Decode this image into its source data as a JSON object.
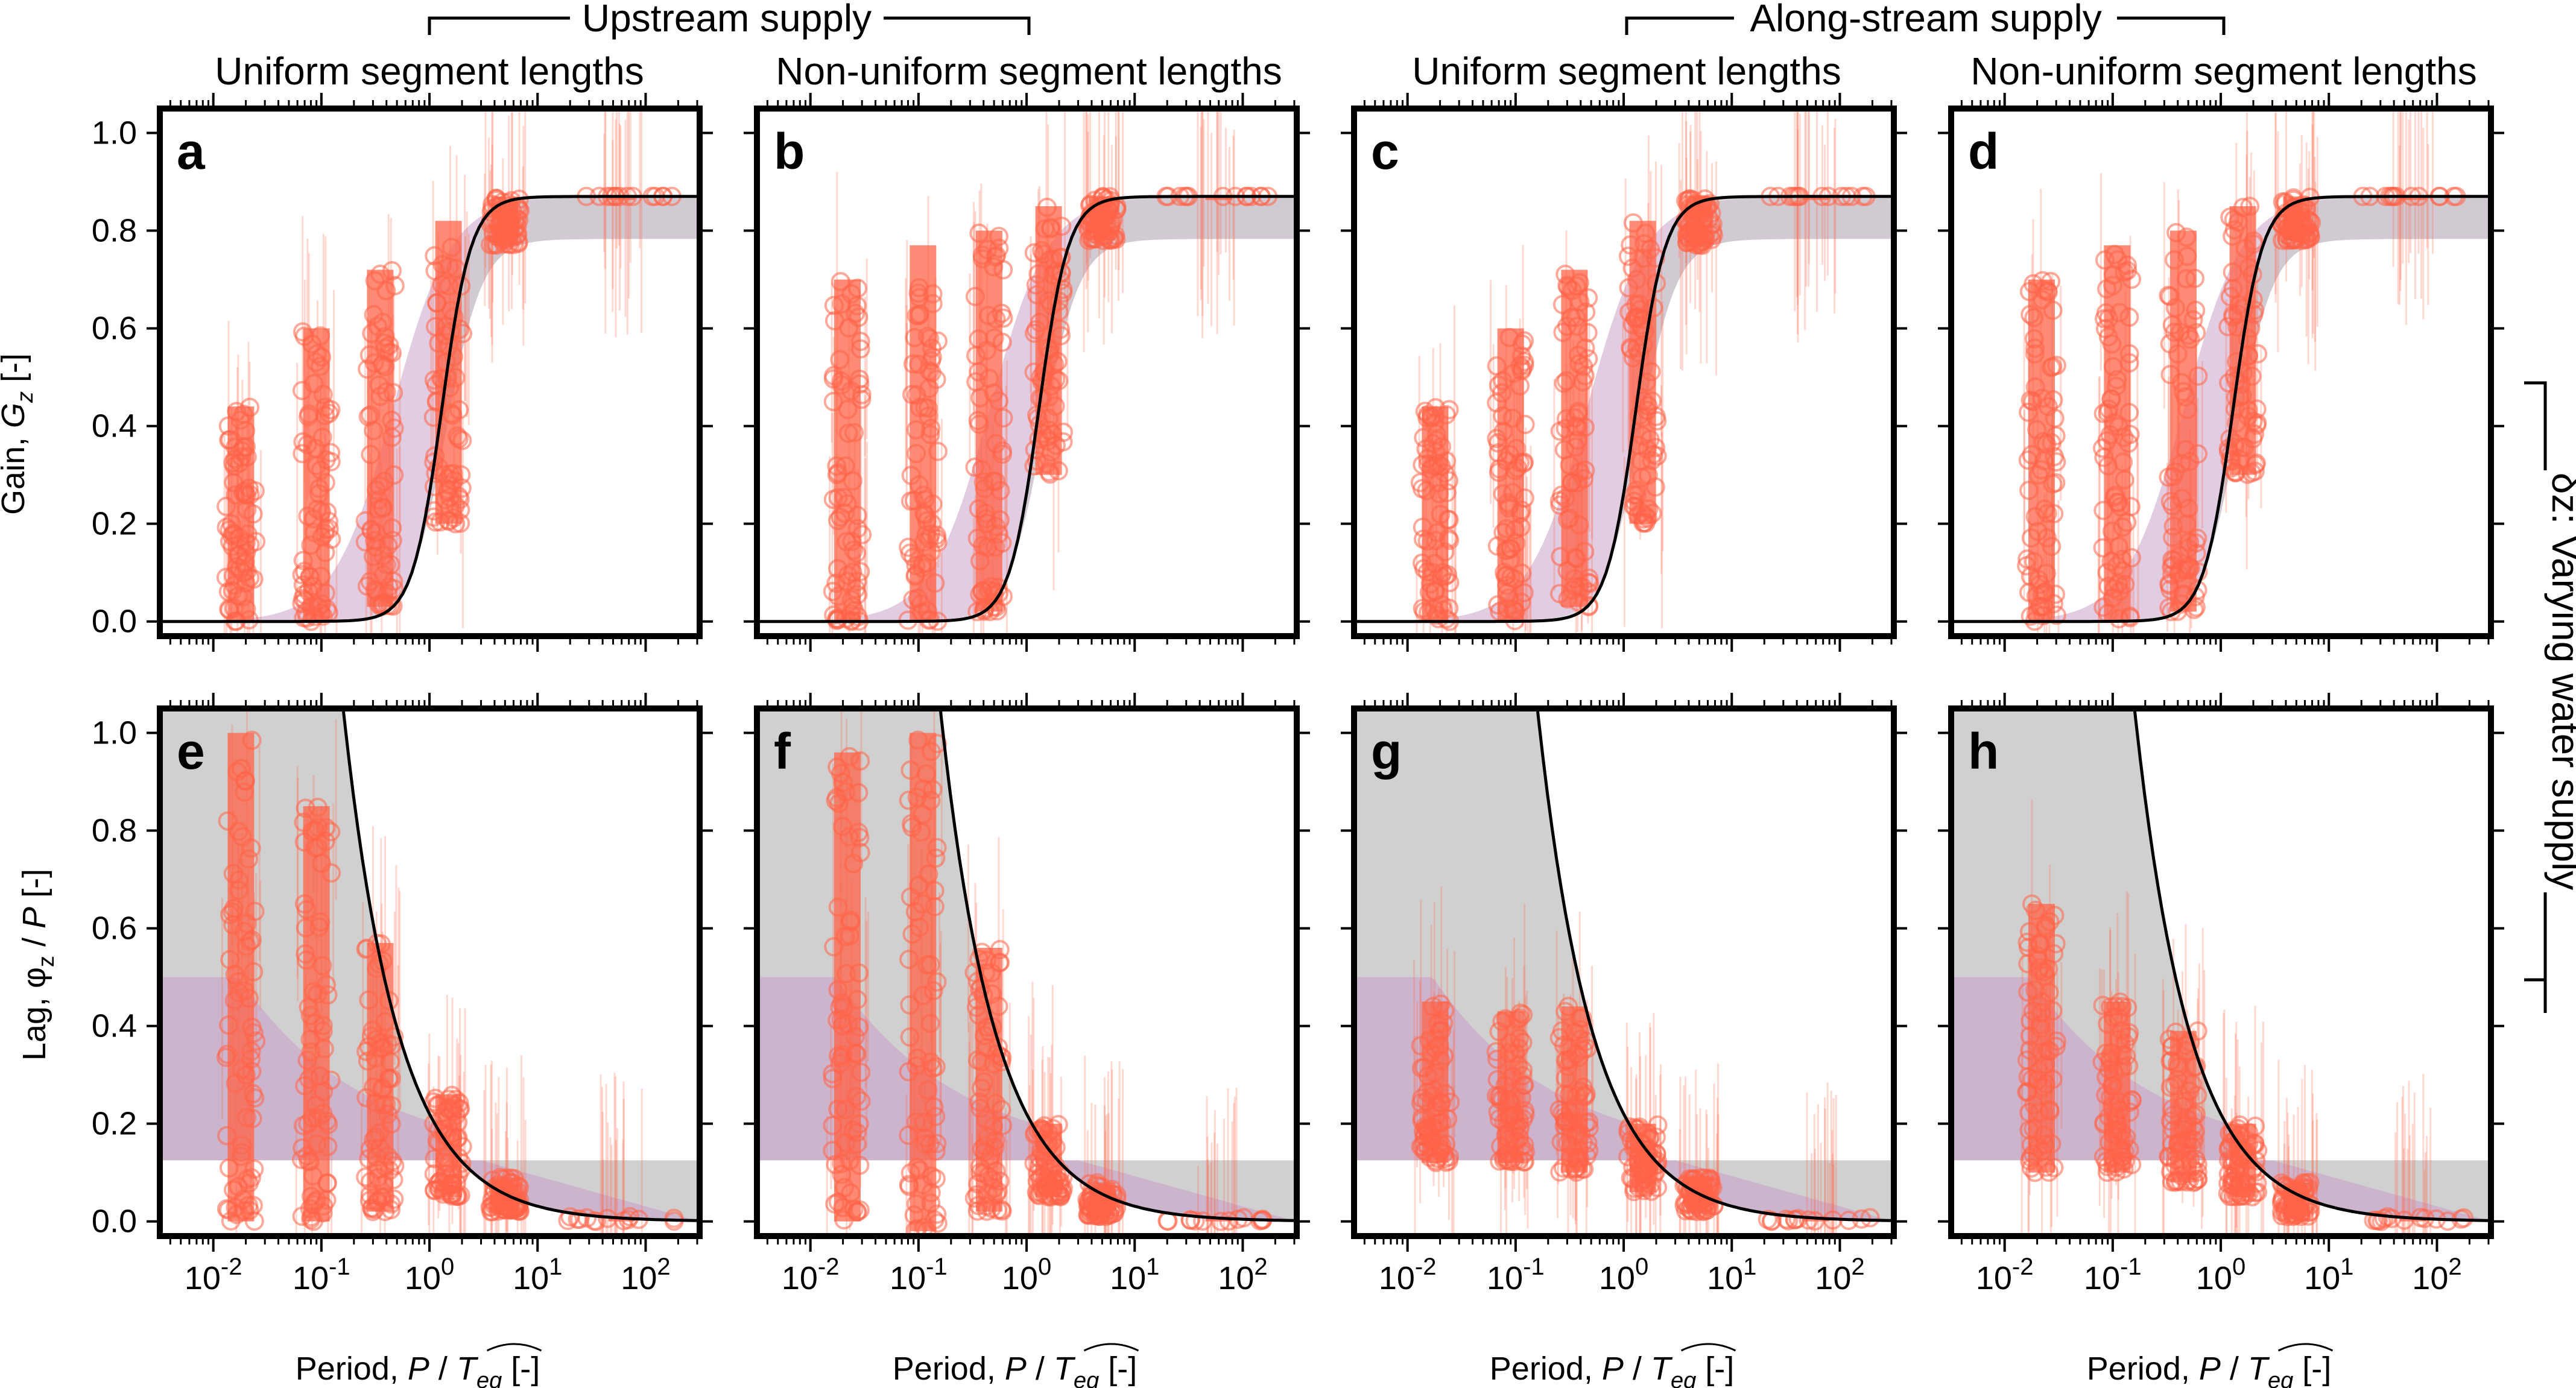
{
  "group_titles": [
    "Upstream supply",
    "Along-stream supply"
  ],
  "column_titles": [
    "Uniform segment lengths",
    "Non-uniform segment lengths",
    "Uniform segment lengths",
    "Non-uniform segment lengths"
  ],
  "side_title": "δz: Varying water supply",
  "panel_letters": [
    "a",
    "b",
    "c",
    "d",
    "e",
    "f",
    "g",
    "h"
  ],
  "row_axis_titles": {
    "gain": {
      "prefix": "Gain, ",
      "var": "G",
      "sub": "z",
      "suffix": " [-]"
    },
    "lag": {
      "prefix": "Lag, φ",
      "sub": "z",
      "mid": " / ",
      "var": "P",
      "suffix": " [-]"
    }
  },
  "x_axis_title": {
    "prefix": "Period, ",
    "var": "P",
    "mid": " / ",
    "denom": "T",
    "denom_sub": "eq",
    "suffix": " [-]"
  },
  "colors": {
    "points": "#ff6347",
    "envelope": "#c9a2c9",
    "grey_band": "#c8c8c8",
    "curve": "#000000"
  },
  "chart_data": [
    {
      "panel": "a",
      "type": "scatter",
      "xlabel": "Period, P / T_eq [-]",
      "ylabel": "Gain, G_z [-]",
      "xscale": "log",
      "xlim": [
        0.0032,
        316
      ],
      "ylim": [
        -0.03,
        1.05
      ],
      "xticks": [
        "10^-2",
        "10^-1",
        "10^0",
        "10^1",
        "10^2"
      ],
      "yticks": [
        "0.0",
        "0.2",
        "0.4",
        "0.6",
        "0.8",
        "1.0"
      ],
      "series": [
        {
          "kind": "scatter",
          "values": [
            {
              "x": 0.018,
              "y_low": 0.0,
              "y_high": 0.44
            },
            {
              "x": 0.09,
              "y_low": 0.0,
              "y_high": 0.6
            },
            {
              "x": 0.35,
              "y_low": 0.03,
              "y_high": 0.72
            },
            {
              "x": 1.5,
              "y_low": 0.2,
              "y_high": 0.82
            },
            {
              "x": 5,
              "y_low": 0.77,
              "y_high": 0.87
            },
            {
              "x": 60,
              "y_low": 0.87,
              "y_high": 0.87
            }
          ]
        },
        {
          "kind": "curve",
          "y_max": 0.87,
          "x_mid": 1.3
        }
      ]
    },
    {
      "panel": "b",
      "type": "scatter",
      "xlabel": "Period, P / T_eq [-]",
      "ylabel": "Gain, G_z [-]",
      "xscale": "log",
      "xlim": [
        0.0032,
        316
      ],
      "ylim": [
        -0.03,
        1.05
      ],
      "xticks": [
        "10^-2",
        "10^-1",
        "10^0",
        "10^1",
        "10^2"
      ],
      "yticks": [
        "0.0",
        "0.2",
        "0.4",
        "0.6",
        "0.8",
        "1.0"
      ],
      "series": [
        {
          "kind": "scatter",
          "values": [
            {
              "x": 0.022,
              "y_low": 0.0,
              "y_high": 0.7
            },
            {
              "x": 0.11,
              "y_low": 0.0,
              "y_high": 0.77
            },
            {
              "x": 0.45,
              "y_low": 0.02,
              "y_high": 0.8
            },
            {
              "x": 1.6,
              "y_low": 0.3,
              "y_high": 0.85
            },
            {
              "x": 5,
              "y_low": 0.78,
              "y_high": 0.87
            },
            {
              "x": 60,
              "y_low": 0.87,
              "y_high": 0.87
            }
          ]
        },
        {
          "kind": "curve",
          "y_max": 0.87,
          "x_mid": 1.3
        }
      ]
    },
    {
      "panel": "c",
      "type": "scatter",
      "xlabel": "Period, P / T_eq [-]",
      "ylabel": "Gain, G_z [-]",
      "xscale": "log",
      "xlim": [
        0.0032,
        316
      ],
      "ylim": [
        -0.03,
        1.05
      ],
      "xticks": [
        "10^-2",
        "10^-1",
        "10^0",
        "10^1",
        "10^2"
      ],
      "yticks": [
        "0.0",
        "0.2",
        "0.4",
        "0.6",
        "0.8",
        "1.0"
      ],
      "series": [
        {
          "kind": "scatter",
          "values": [
            {
              "x": 0.018,
              "y_low": 0.0,
              "y_high": 0.44
            },
            {
              "x": 0.09,
              "y_low": 0.0,
              "y_high": 0.6
            },
            {
              "x": 0.35,
              "y_low": 0.03,
              "y_high": 0.72
            },
            {
              "x": 1.5,
              "y_low": 0.2,
              "y_high": 0.82
            },
            {
              "x": 5,
              "y_low": 0.77,
              "y_high": 0.87
            },
            {
              "x": 60,
              "y_low": 0.87,
              "y_high": 0.87
            }
          ]
        },
        {
          "kind": "curve",
          "y_max": 0.87,
          "x_mid": 1.3
        }
      ]
    },
    {
      "panel": "d",
      "type": "scatter",
      "xlabel": "Period, P / T_eq [-]",
      "ylabel": "Gain, G_z [-]",
      "xscale": "log",
      "xlim": [
        0.0032,
        316
      ],
      "ylim": [
        -0.03,
        1.05
      ],
      "xticks": [
        "10^-2",
        "10^-1",
        "10^0",
        "10^1",
        "10^2"
      ],
      "yticks": [
        "0.0",
        "0.2",
        "0.4",
        "0.6",
        "0.8",
        "1.0"
      ],
      "series": [
        {
          "kind": "scatter",
          "values": [
            {
              "x": 0.022,
              "y_low": 0.0,
              "y_high": 0.7
            },
            {
              "x": 0.11,
              "y_low": 0.0,
              "y_high": 0.77
            },
            {
              "x": 0.45,
              "y_low": 0.02,
              "y_high": 0.8
            },
            {
              "x": 1.6,
              "y_low": 0.3,
              "y_high": 0.85
            },
            {
              "x": 5,
              "y_low": 0.78,
              "y_high": 0.87
            },
            {
              "x": 60,
              "y_low": 0.87,
              "y_high": 0.87
            }
          ]
        },
        {
          "kind": "curve",
          "y_max": 0.87,
          "x_mid": 1.3
        }
      ]
    },
    {
      "panel": "e",
      "type": "scatter",
      "xlabel": "Period, P / T_eq [-]",
      "ylabel": "Lag, φ_z / P [-]",
      "xscale": "log",
      "xlim": [
        0.0032,
        316
      ],
      "ylim": [
        -0.03,
        1.05
      ],
      "xticks": [
        "10^-2",
        "10^-1",
        "10^0",
        "10^1",
        "10^2"
      ],
      "yticks": [
        "0.0",
        "0.2",
        "0.4",
        "0.6",
        "0.8",
        "1.0"
      ],
      "series": [
        {
          "kind": "scatter",
          "values": [
            {
              "x": 0.018,
              "y_low": 0.0,
              "y_high": 1.0
            },
            {
              "x": 0.09,
              "y_low": 0.0,
              "y_high": 0.85
            },
            {
              "x": 0.35,
              "y_low": 0.02,
              "y_high": 0.57
            },
            {
              "x": 1.5,
              "y_low": 0.05,
              "y_high": 0.26
            },
            {
              "x": 5,
              "y_low": 0.02,
              "y_high": 0.09
            },
            {
              "x": 60,
              "y_low": 0.0,
              "y_high": 0.01
            }
          ]
        },
        {
          "kind": "curve",
          "type": "lag",
          "c": 0.2
        }
      ]
    },
    {
      "panel": "f",
      "type": "scatter",
      "xlabel": "Period, P / T_eq [-]",
      "ylabel": "Lag, φ_z / P [-]",
      "xscale": "log",
      "xlim": [
        0.0032,
        316
      ],
      "ylim": [
        -0.03,
        1.05
      ],
      "xticks": [
        "10^-2",
        "10^-1",
        "10^0",
        "10^1",
        "10^2"
      ],
      "yticks": [
        "0.0",
        "0.2",
        "0.4",
        "0.6",
        "0.8",
        "1.0"
      ],
      "series": [
        {
          "kind": "scatter",
          "values": [
            {
              "x": 0.022,
              "y_low": 0.0,
              "y_high": 0.96
            },
            {
              "x": 0.11,
              "y_low": -0.02,
              "y_high": 1.0
            },
            {
              "x": 0.45,
              "y_low": 0.02,
              "y_high": 0.56
            },
            {
              "x": 1.6,
              "y_low": 0.05,
              "y_high": 0.2
            },
            {
              "x": 5,
              "y_low": 0.01,
              "y_high": 0.08
            },
            {
              "x": 60,
              "y_low": 0.0,
              "y_high": 0.01
            }
          ]
        },
        {
          "kind": "curve",
          "type": "lag",
          "c": 0.2
        }
      ]
    },
    {
      "panel": "g",
      "type": "scatter",
      "xlabel": "Period, P / T_eq [-]",
      "ylabel": "Lag, φ_z / P [-]",
      "xscale": "log",
      "xlim": [
        0.0032,
        316
      ],
      "ylim": [
        -0.03,
        1.05
      ],
      "xticks": [
        "10^-2",
        "10^-1",
        "10^0",
        "10^1",
        "10^2"
      ],
      "yticks": [
        "0.0",
        "0.2",
        "0.4",
        "0.6",
        "0.8",
        "1.0"
      ],
      "series": [
        {
          "kind": "scatter",
          "values": [
            {
              "x": 0.018,
              "y_low": 0.12,
              "y_high": 0.45
            },
            {
              "x": 0.09,
              "y_low": 0.12,
              "y_high": 0.43
            },
            {
              "x": 0.35,
              "y_low": 0.1,
              "y_high": 0.44
            },
            {
              "x": 1.5,
              "y_low": 0.06,
              "y_high": 0.2
            },
            {
              "x": 5,
              "y_low": 0.02,
              "y_high": 0.09
            },
            {
              "x": 60,
              "y_low": 0.0,
              "y_high": 0.01
            }
          ]
        },
        {
          "kind": "curve",
          "type": "lag",
          "c": 0.2
        }
      ]
    },
    {
      "panel": "h",
      "type": "scatter",
      "xlabel": "Period, P / T_eq [-]",
      "ylabel": "Lag, φ_z / P [-]",
      "xscale": "log",
      "xlim": [
        0.0032,
        316
      ],
      "ylim": [
        -0.03,
        1.05
      ],
      "xticks": [
        "10^-2",
        "10^-1",
        "10^0",
        "10^1",
        "10^2"
      ],
      "yticks": [
        "0.0",
        "0.2",
        "0.4",
        "0.6",
        "0.8",
        "1.0"
      ],
      "series": [
        {
          "kind": "scatter",
          "values": [
            {
              "x": 0.022,
              "y_low": 0.1,
              "y_high": 0.65
            },
            {
              "x": 0.11,
              "y_low": 0.1,
              "y_high": 0.45
            },
            {
              "x": 0.45,
              "y_low": 0.08,
              "y_high": 0.39
            },
            {
              "x": 1.6,
              "y_low": 0.05,
              "y_high": 0.2
            },
            {
              "x": 5,
              "y_low": 0.01,
              "y_high": 0.08
            },
            {
              "x": 60,
              "y_low": 0.0,
              "y_high": 0.01
            }
          ]
        },
        {
          "kind": "curve",
          "type": "lag",
          "c": 0.2
        }
      ]
    }
  ]
}
